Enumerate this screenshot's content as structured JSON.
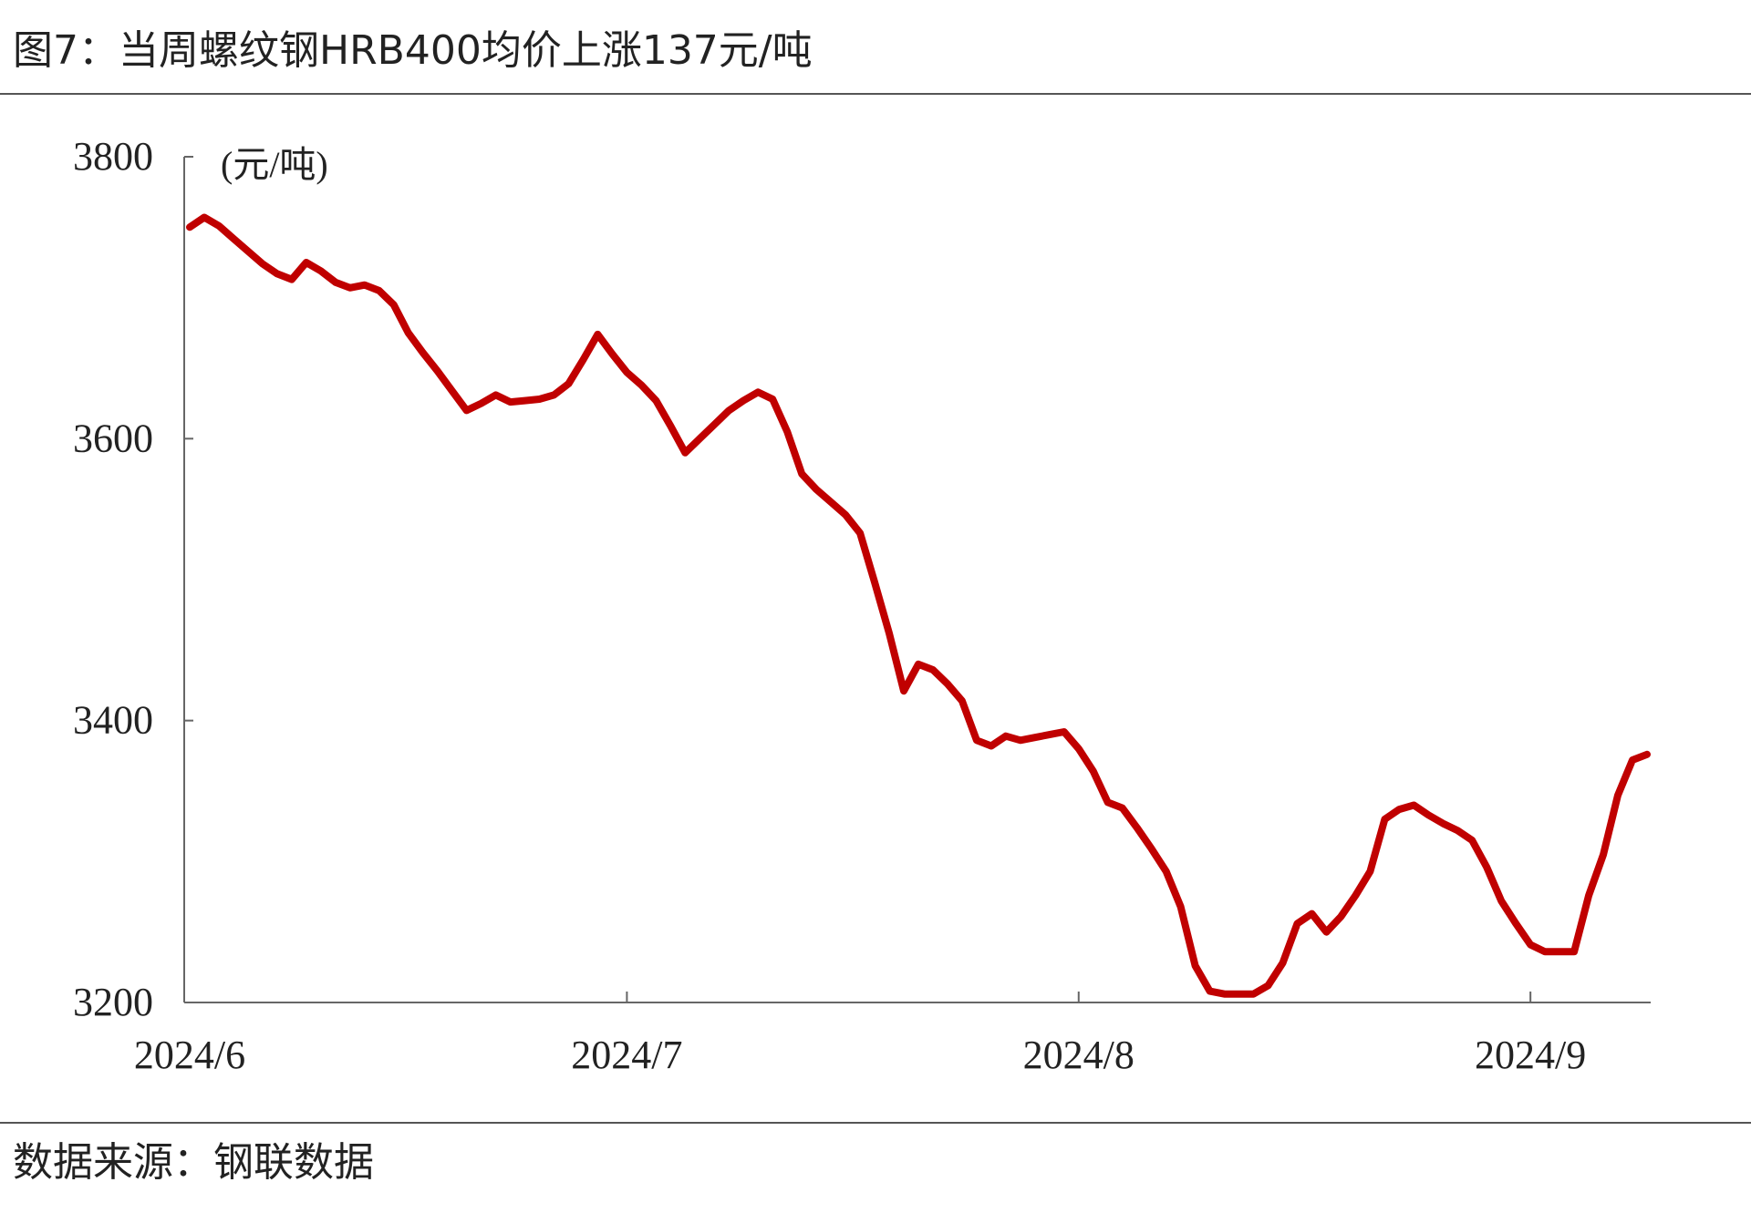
{
  "chart_data": {
    "type": "line",
    "title": "图7：当周螺纹钢HRB400均价上涨137元/吨",
    "y_label": "(元/吨)",
    "source": "数据来源：钢联数据",
    "categories": [
      "2024/6",
      null,
      null,
      null,
      null,
      null,
      null,
      null,
      null,
      null,
      null,
      null,
      null,
      null,
      null,
      null,
      null,
      null,
      null,
      null,
      null,
      null,
      null,
      null,
      null,
      null,
      null,
      null,
      null,
      null,
      "2024/7",
      null,
      null,
      null,
      null,
      null,
      null,
      null,
      null,
      null,
      null,
      null,
      null,
      null,
      null,
      null,
      null,
      null,
      null,
      null,
      null,
      null,
      null,
      null,
      null,
      null,
      null,
      null,
      null,
      null,
      null,
      "2024/8",
      null,
      null,
      null,
      null,
      null,
      null,
      null,
      null,
      null,
      null,
      null,
      null,
      null,
      null,
      null,
      null,
      null,
      null,
      null,
      null,
      null,
      null,
      null,
      null,
      null,
      null,
      null,
      null,
      null,
      null,
      "2024/9",
      null,
      null,
      null,
      null,
      null,
      null,
      null,
      null
    ],
    "series": [
      {
        "name": "螺纹钢HRB400均价",
        "color": "#c00000",
        "values": [
          3750,
          3757,
          3751,
          3742,
          3733,
          3724,
          3717,
          3713,
          3725,
          3719,
          3711,
          3707,
          3709,
          3705,
          3695,
          3675,
          3661,
          3648,
          3634,
          3620,
          3625,
          3631,
          3626,
          3627,
          3628,
          3631,
          3639,
          3656,
          3674,
          3660,
          3647,
          3638,
          3627,
          3609,
          3590,
          3600,
          3610,
          3620,
          3627,
          3633,
          3628,
          3605,
          3575,
          3564,
          3555,
          3546,
          3533,
          3498,
          3462,
          3421,
          3440,
          3436,
          3426,
          3414,
          3386,
          3382,
          3389,
          3386,
          3388,
          3390,
          3392,
          3380,
          3364,
          3342,
          3338,
          3324,
          3309,
          3293,
          3268,
          3226,
          3208,
          3206,
          3206,
          3206,
          3212,
          3228,
          3256,
          3263,
          3250,
          3261,
          3276,
          3293,
          3330,
          3337,
          3340,
          3333,
          3327,
          3322,
          3315,
          3296,
          3272,
          3256,
          3241,
          3236,
          3236,
          3236,
          3276,
          3305,
          3347,
          3372,
          3376
        ]
      }
    ],
    "ylim": [
      3200,
      3800
    ],
    "yticks": [
      3200,
      3400,
      3600,
      3800
    ],
    "grid": false
  }
}
